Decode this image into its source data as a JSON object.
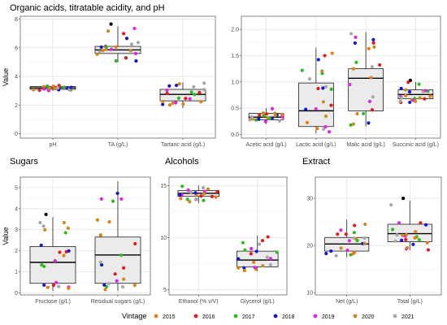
{
  "colors": {
    "2015": "#e87d13",
    "2016": "#e31a1c",
    "2017": "#2bbd1e",
    "2018": "#1414d4",
    "2019": "#e620e6",
    "2020": "#c98a1c",
    "2021": "#a8a8a8",
    "outlier": "#000000",
    "box_fill": "#ebebeb",
    "grid": "#e0e0e0"
  },
  "legend": {
    "title": "Vintage",
    "items": [
      "2015",
      "2016",
      "2017",
      "2018",
      "2019",
      "2020",
      "2021"
    ]
  },
  "y_label": "Value",
  "chart_data": [
    {
      "type": "box",
      "title": "Organic acids, titratable acidity, and pH",
      "ylabel": "Value",
      "ylim": [
        -0.3,
        8.2
      ],
      "yticks": [
        0,
        2,
        4,
        6,
        8
      ],
      "categories": [
        "pH",
        "TA (g/L)",
        "Tartaric acid (g/L)"
      ],
      "boxes": [
        {
          "min": 3.0,
          "q1": 3.1,
          "median": 3.2,
          "q3": 3.3,
          "max": 3.4
        },
        {
          "min": 5.0,
          "q1": 5.6,
          "median": 5.85,
          "q3": 6.1,
          "max": 7.5
        },
        {
          "min": 1.8,
          "q1": 2.3,
          "median": 2.75,
          "q3": 3.1,
          "max": 3.6
        }
      ]
    },
    {
      "type": "box",
      "title": "",
      "ylabel": "",
      "ylim": [
        -0.07,
        2.25
      ],
      "yticks": [
        0.0,
        0.5,
        1.0,
        1.5,
        2.0
      ],
      "categories": [
        "Acetic acid (g/L)",
        "Lactic acid (g/L)",
        "Malic acid (g/L)",
        "Succinic acid (g/L)"
      ],
      "boxes": [
        {
          "min": 0.2,
          "q1": 0.28,
          "median": 0.33,
          "q3": 0.4,
          "max": 0.5
        },
        {
          "min": 0.02,
          "q1": 0.15,
          "median": 0.45,
          "q3": 0.98,
          "max": 1.65
        },
        {
          "min": 0.15,
          "q1": 0.45,
          "median": 1.07,
          "q3": 1.25,
          "max": 1.95
        },
        {
          "min": 0.6,
          "q1": 0.68,
          "median": 0.76,
          "q3": 0.85,
          "max": 1.0
        }
      ]
    },
    {
      "type": "box",
      "title": "Sugars",
      "ylabel": "Value",
      "ylim": [
        -0.1,
        5.5
      ],
      "yticks": [
        0,
        1,
        2,
        3,
        4,
        5
      ],
      "categories": [
        "Fructose (g/L)",
        "Residual sugars (g/L)"
      ],
      "boxes": [
        {
          "min": 0.1,
          "q1": 0.45,
          "median": 1.45,
          "q3": 2.2,
          "max": 3.6
        },
        {
          "min": 0.1,
          "q1": 0.45,
          "median": 1.8,
          "q3": 2.65,
          "max": 5.3
        }
      ]
    },
    {
      "type": "box",
      "title": "Alcohols",
      "ylabel": "",
      "ylim": [
        4.5,
        15.8
      ],
      "yticks": [
        5,
        10,
        15
      ],
      "categories": [
        "Ethanol (% v/V)",
        "Glycerol (g/L)"
      ],
      "boxes": [
        {
          "min": 13.3,
          "q1": 13.95,
          "median": 14.25,
          "q3": 14.5,
          "max": 15.0
        },
        {
          "min": 6.8,
          "q1": 7.2,
          "median": 7.85,
          "q3": 8.7,
          "max": 10.2
        }
      ]
    },
    {
      "type": "box",
      "title": "Extract",
      "ylabel": "",
      "ylim": [
        9.5,
        34.5
      ],
      "yticks": [
        10,
        20,
        30
      ],
      "categories": [
        "Net (g/L)",
        "Total (g/L)"
      ],
      "boxes": [
        {
          "min": 17.5,
          "q1": 18.8,
          "median": 20.3,
          "q3": 21.7,
          "max": 25.5
        },
        {
          "min": 19.0,
          "q1": 20.8,
          "median": 22.5,
          "q3": 24.5,
          "max": 29.5
        }
      ]
    }
  ]
}
